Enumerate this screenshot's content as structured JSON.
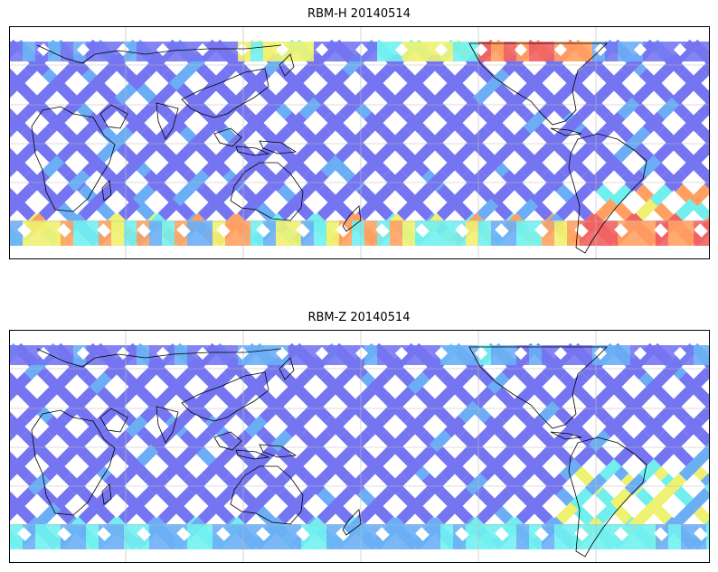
{
  "panels": [
    {
      "title": "RBM-H 20140514",
      "palette": "high"
    },
    {
      "title": "RBM-Z 20140514",
      "palette": "low"
    }
  ],
  "colors": {
    "track_base": "#6a6af0",
    "track_mid": "#5fa8f5",
    "cyan": "#66eeee",
    "yellow": "#eef066",
    "orange": "#ff9955",
    "red": "#f05555",
    "coast": "#000000",
    "grid": "#bbbbbb"
  }
}
